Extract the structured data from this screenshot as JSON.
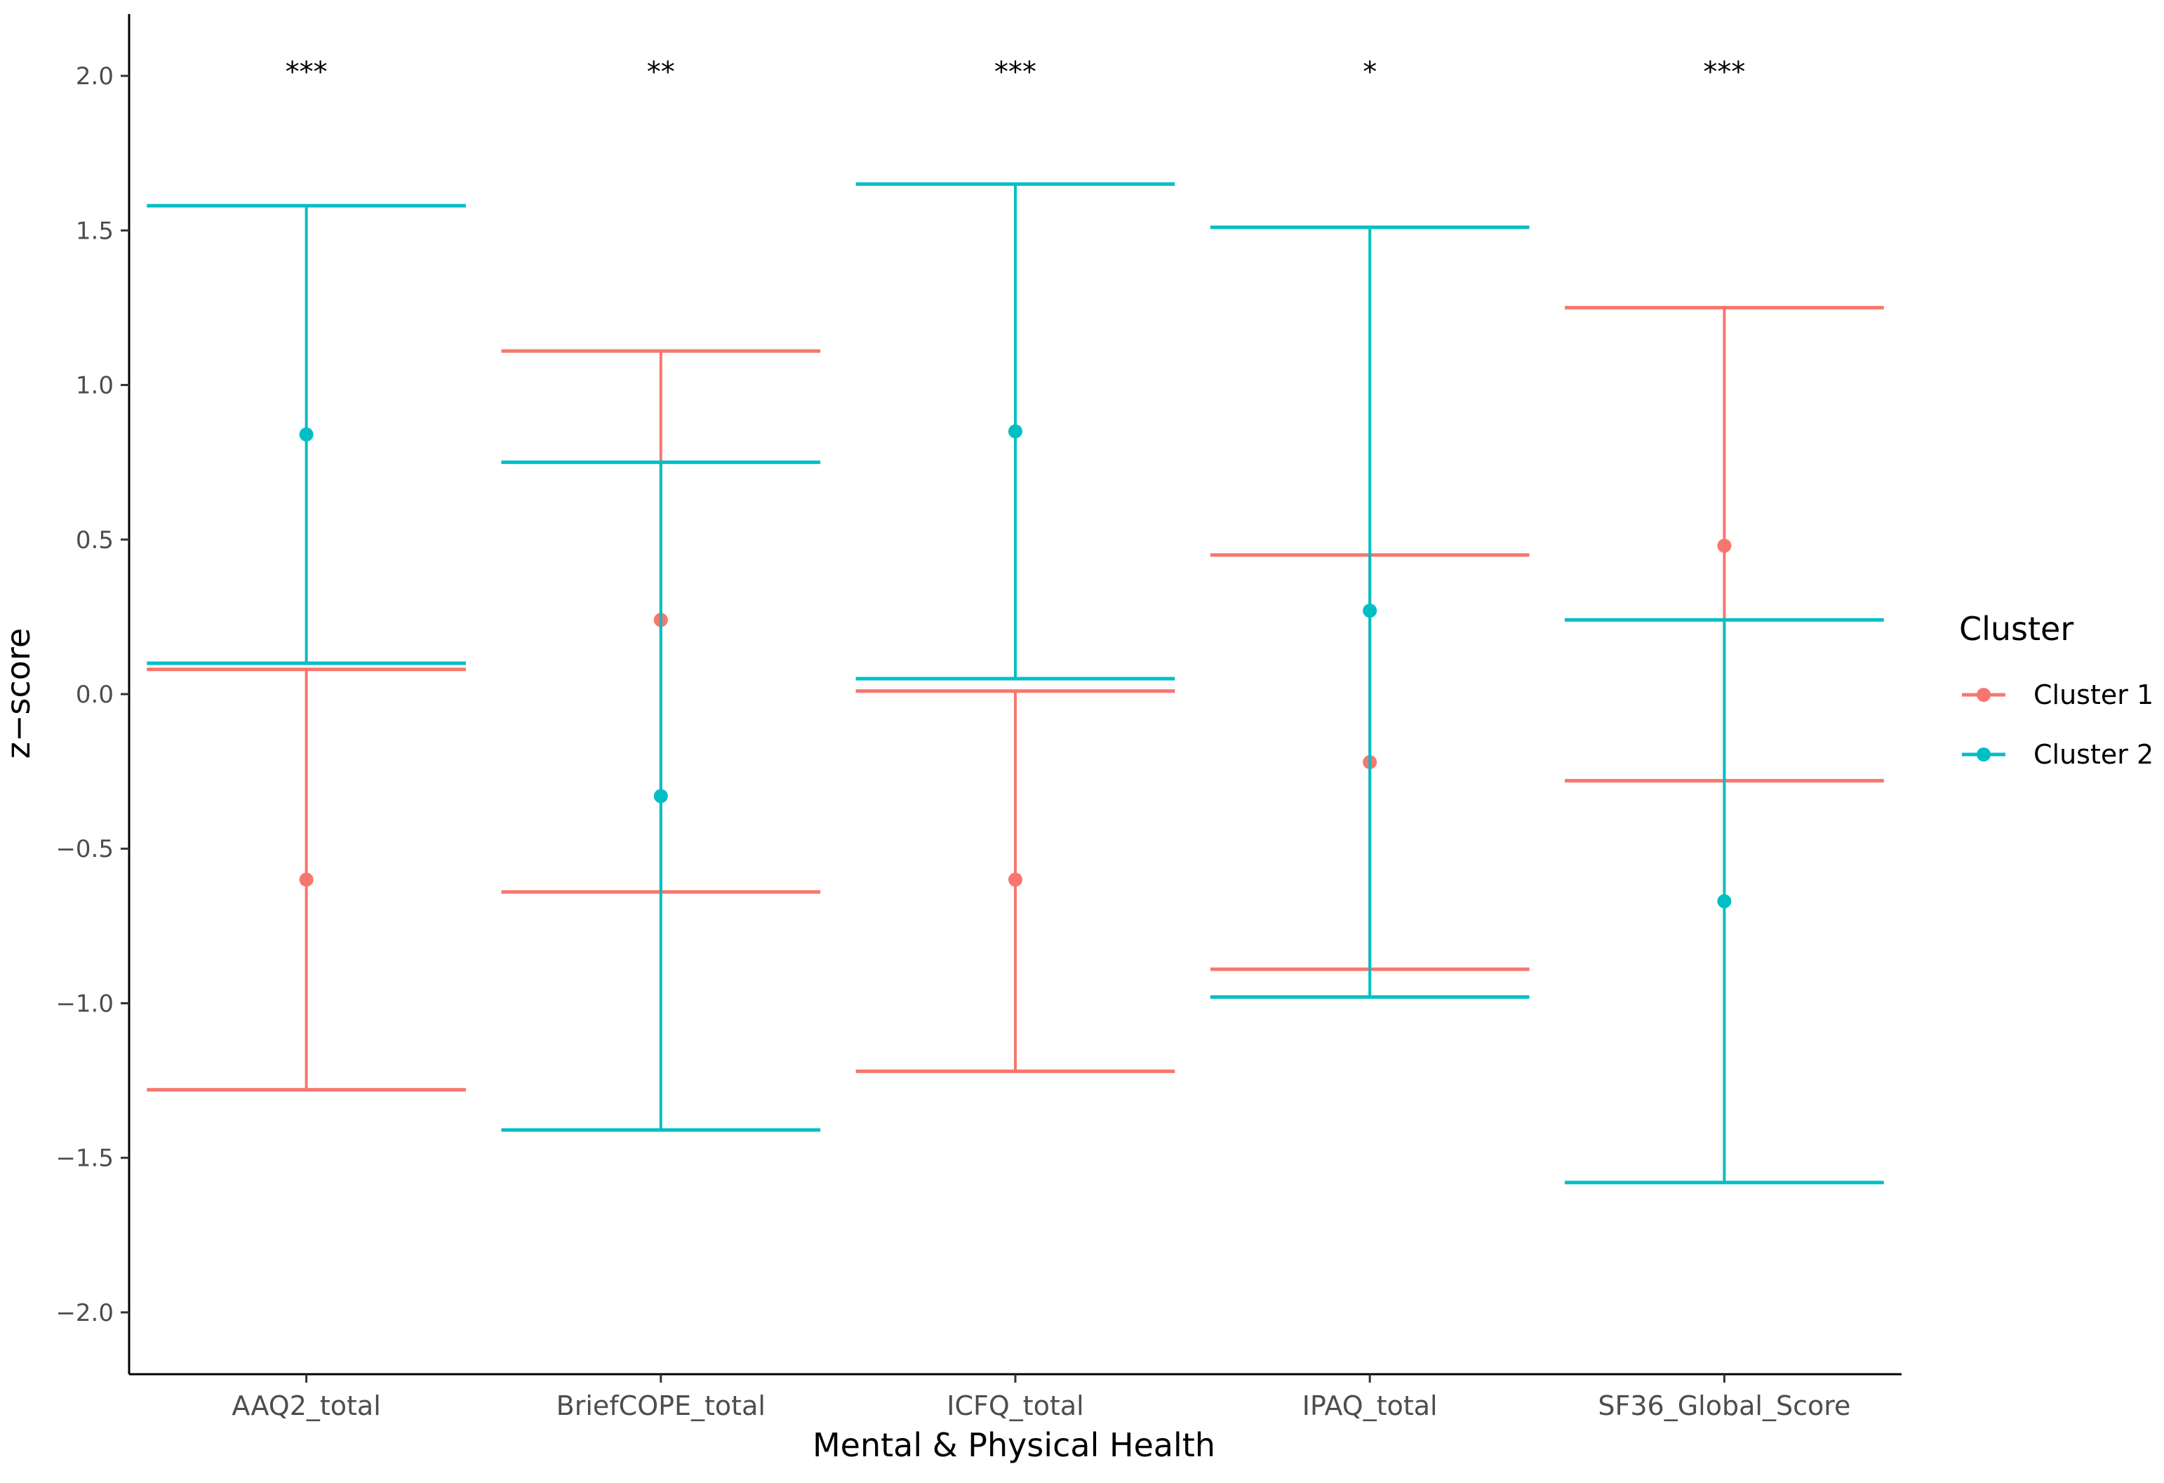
{
  "chart_data": {
    "type": "errorbar",
    "title": "",
    "xlabel": "Mental & Physical Health",
    "ylabel": "z−score",
    "ylim": [
      -2.2,
      2.2
    ],
    "yticks": [
      2.0,
      1.5,
      1.0,
      0.5,
      0.0,
      -0.5,
      -1.0,
      -1.5,
      -2.0
    ],
    "ytick_labels": [
      "2.0",
      "1.5",
      "1.0",
      "0.5",
      "0.0",
      "−0.5",
      "−1.0",
      "−1.5",
      "−2.0"
    ],
    "categories": [
      "AAQ2_total",
      "BriefCOPE_total",
      "ICFQ_total",
      "IPAQ_total",
      "SF36_Global_Score"
    ],
    "significance": [
      "***",
      "**",
      "***",
      "*",
      "***"
    ],
    "significance_y": 2.0,
    "grid": false,
    "legend": {
      "title": "Cluster",
      "position": "right"
    },
    "series": [
      {
        "name": "Cluster 1",
        "color": "#F8766D",
        "mean": [
          -0.6,
          0.24,
          -0.6,
          -0.22,
          0.48
        ],
        "upper": [
          0.08,
          1.11,
          0.01,
          0.45,
          1.25
        ],
        "lower": [
          -1.28,
          -0.64,
          -1.22,
          -0.89,
          -0.28
        ]
      },
      {
        "name": "Cluster 2",
        "color": "#00BFC4",
        "mean": [
          0.84,
          -0.33,
          0.85,
          0.27,
          -0.67
        ],
        "upper": [
          1.58,
          0.75,
          1.65,
          1.51,
          0.24
        ],
        "lower": [
          0.1,
          -1.41,
          0.05,
          -0.98,
          -1.58
        ]
      }
    ]
  }
}
